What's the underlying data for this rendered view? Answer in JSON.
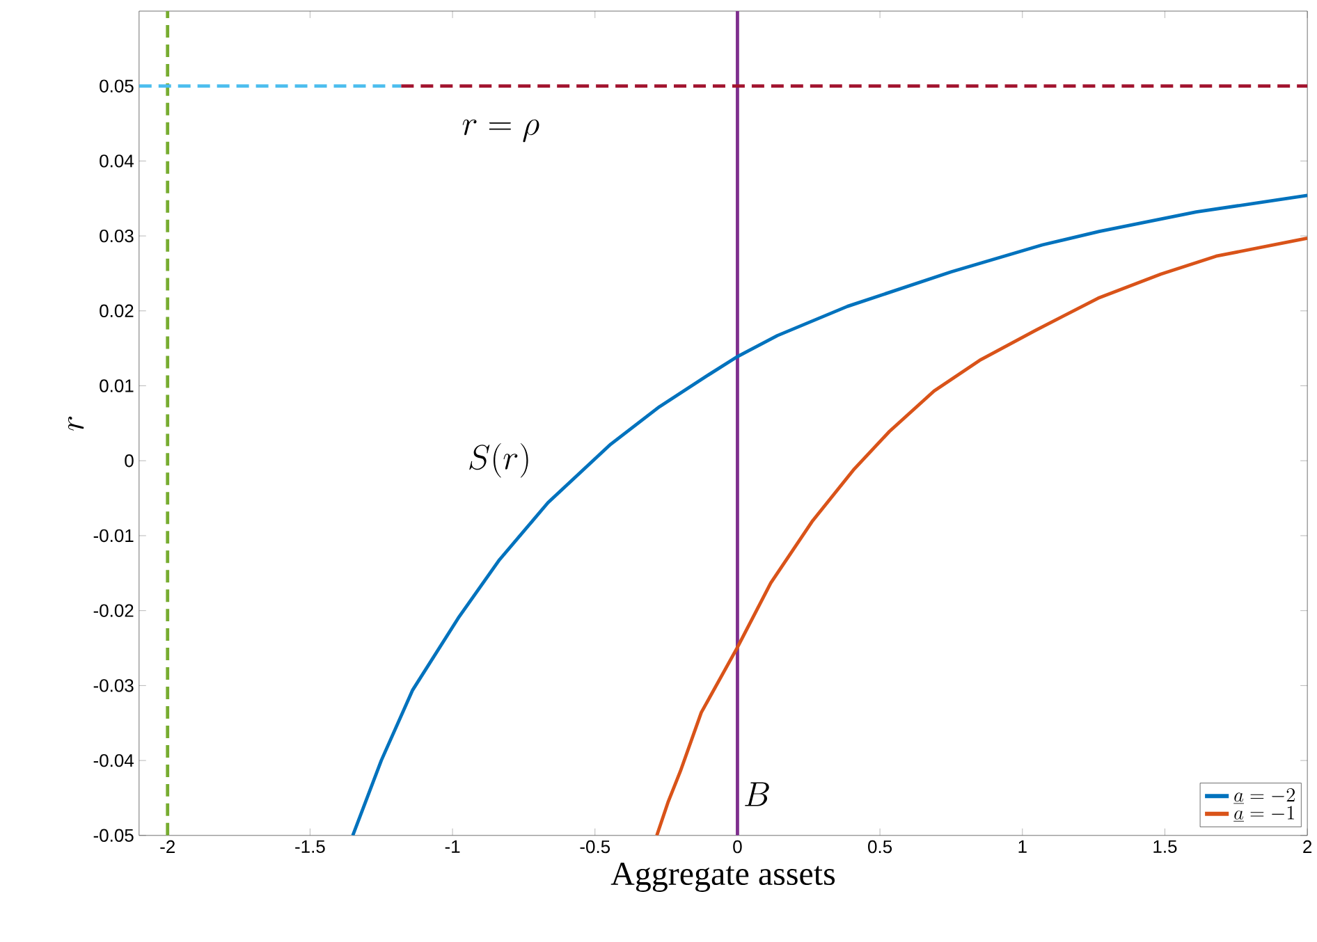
{
  "chart_data": {
    "type": "line",
    "xlabel": "Aggregate assets",
    "ylabel": "r",
    "xlim": [
      -2.1,
      2
    ],
    "ylim": [
      -0.05,
      0.06
    ],
    "xticks": [
      -2,
      -1.5,
      -1,
      -0.5,
      0,
      0.5,
      1,
      1.5,
      2
    ],
    "yticks": [
      -0.05,
      -0.04,
      -0.03,
      -0.02,
      -0.01,
      0,
      0.01,
      0.02,
      0.03,
      0.04,
      0.05
    ],
    "legend": "bottom right",
    "line_style": "solid",
    "series": [
      {
        "name": "\\underline{a} = -2",
        "color": "#0072bd",
        "x": [
          -1.35,
          -1.25,
          -1.14,
          -0.98,
          -0.835,
          -0.665,
          -0.445,
          -0.274,
          -0.1,
          0,
          0.14,
          0.386,
          0.75,
          1.07,
          1.27,
          1.61,
          2
        ],
        "values": [
          -0.05,
          -0.04,
          -0.0306,
          -0.021,
          -0.0132,
          -0.0056,
          0.0022,
          0.0072,
          0.0115,
          0.0139,
          0.0167,
          0.0206,
          0.0252,
          0.0288,
          0.0306,
          0.0332,
          0.0354
        ]
      },
      {
        "name": "\\underline{a} = -1",
        "color": "#d95319",
        "x": [
          -0.283,
          -0.244,
          -0.2,
          -0.127,
          0,
          0.117,
          0.264,
          0.41,
          0.533,
          0.69,
          0.85,
          1.046,
          1.266,
          1.486,
          1.68,
          2
        ],
        "values": [
          -0.05,
          -0.0456,
          -0.0414,
          -0.0336,
          -0.0249,
          -0.0163,
          -0.008,
          -0.0011,
          0.0039,
          0.0093,
          0.0134,
          0.0174,
          0.0217,
          0.0249,
          0.0273,
          0.0297
        ]
      },
      {
        "color": "#4dbeee",
        "line_style": "dashed",
        "x": [
          -2.1,
          -1.18
        ],
        "values": [
          0.05,
          0.05
        ]
      },
      {
        "color": "#a2142f",
        "line_style": "dashed",
        "x": [
          -1.18,
          2
        ],
        "values": [
          0.05,
          0.05
        ]
      }
    ],
    "ref_lines": [
      {
        "axis": "x",
        "value": -2,
        "color": "#77ac30",
        "line_style": "dashed"
      },
      {
        "axis": "x",
        "value": 0,
        "color": "#7e2f8e",
        "line_style": "solid"
      }
    ],
    "annotations": [
      "r = \\rho",
      "S(r)",
      "B"
    ]
  }
}
